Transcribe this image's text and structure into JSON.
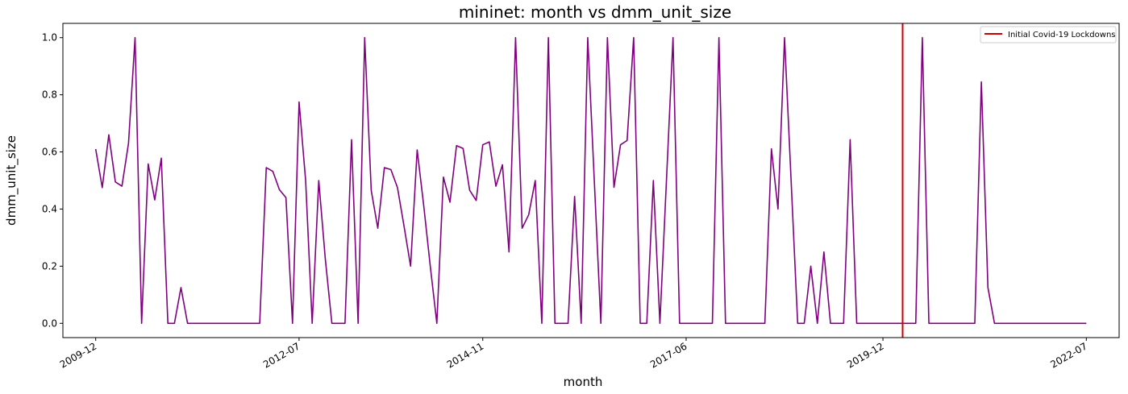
{
  "chart_data": {
    "type": "line",
    "title": "mininet: month vs dmm_unit_size",
    "xlabel": "month",
    "ylabel": "dmm_unit_size",
    "x_tick_labels": [
      "2009-12",
      "2012-07",
      "2014-11",
      "2017-06",
      "2019-12",
      "2022-07"
    ],
    "y_tick_labels": [
      "0.0",
      "0.2",
      "0.4",
      "0.6",
      "0.8",
      "1.0"
    ],
    "ylim": [
      -0.05,
      1.05
    ],
    "xlim": [
      "2009-07",
      "2022-12"
    ],
    "grid": false,
    "legend_position": "top-right",
    "series": [
      {
        "color": "#800080",
        "x": [
          "2009-12",
          "2010-01",
          "2010-02",
          "2010-03",
          "2010-04",
          "2010-05",
          "2010-06",
          "2010-07",
          "2010-08",
          "2010-09",
          "2010-10",
          "2010-11",
          "2010-12",
          "2011-01",
          "2011-02",
          "2011-03",
          "2011-04",
          "2011-05",
          "2011-06",
          "2011-07",
          "2011-08",
          "2011-09",
          "2011-10",
          "2011-11",
          "2011-12",
          "2012-01",
          "2012-02",
          "2012-03",
          "2012-04",
          "2012-05",
          "2012-06",
          "2012-07",
          "2012-08",
          "2012-09",
          "2012-10",
          "2012-11",
          "2012-12",
          "2013-01",
          "2013-02",
          "2013-03",
          "2013-04",
          "2013-05",
          "2013-06",
          "2013-07",
          "2013-08",
          "2013-09",
          "2013-10",
          "2013-11",
          "2013-12",
          "2014-01",
          "2014-02",
          "2014-03",
          "2014-04",
          "2014-05",
          "2014-06",
          "2014-07",
          "2014-08",
          "2014-09",
          "2014-10",
          "2014-11",
          "2014-12",
          "2015-01",
          "2015-02",
          "2015-03",
          "2015-04",
          "2015-05",
          "2015-06",
          "2015-07",
          "2015-08",
          "2015-09",
          "2015-10",
          "2015-11",
          "2015-12",
          "2016-01",
          "2016-02",
          "2016-03",
          "2016-04",
          "2016-05",
          "2016-06",
          "2016-07",
          "2016-08",
          "2016-09",
          "2016-10",
          "2016-11",
          "2016-12",
          "2017-01",
          "2017-02",
          "2017-03",
          "2017-04",
          "2017-05",
          "2017-06",
          "2017-07",
          "2017-08",
          "2017-09",
          "2017-10",
          "2017-11",
          "2017-12",
          "2018-01",
          "2018-02",
          "2018-03",
          "2018-04",
          "2018-05",
          "2018-06",
          "2018-07",
          "2018-08",
          "2018-09",
          "2018-10",
          "2018-11",
          "2018-12",
          "2019-01",
          "2019-02",
          "2019-03",
          "2019-04",
          "2019-05",
          "2019-06",
          "2019-07",
          "2019-08",
          "2019-09",
          "2019-10",
          "2019-11",
          "2019-12",
          "2020-01",
          "2020-02",
          "2020-03",
          "2020-04",
          "2020-05",
          "2020-06",
          "2020-07",
          "2020-08",
          "2020-09",
          "2020-10",
          "2020-11",
          "2020-12",
          "2021-01",
          "2021-02",
          "2021-03",
          "2021-04",
          "2021-05",
          "2021-06",
          "2021-07",
          "2021-08",
          "2021-09",
          "2021-10",
          "2021-11",
          "2021-12",
          "2022-01",
          "2022-02",
          "2022-03",
          "2022-04",
          "2022-05",
          "2022-06",
          "2022-07"
        ],
        "y": [
          0.61,
          0.475,
          0.66,
          0.495,
          0.48,
          0.63,
          1.0,
          0.0,
          0.558,
          0.432,
          0.578,
          0.0,
          0.0,
          0.125,
          0.0,
          0.0,
          0.0,
          0.0,
          0.0,
          0.0,
          0.0,
          0.0,
          0.0,
          0.0,
          0.0,
          0.0,
          0.545,
          0.532,
          0.468,
          0.44,
          0.0,
          0.775,
          0.5,
          0.0,
          0.5,
          0.225,
          0.0,
          0.0,
          0.0,
          0.643,
          0.0,
          1.0,
          0.465,
          0.333,
          0.545,
          0.538,
          0.475,
          0.34,
          0.2,
          0.607,
          0.412,
          0.2,
          0.0,
          0.512,
          0.424,
          0.622,
          0.612,
          0.466,
          0.43,
          0.625,
          0.635,
          0.48,
          0.555,
          0.25,
          1.0,
          0.333,
          0.38,
          0.5,
          0.0,
          1.0,
          0.0,
          0.0,
          0.0,
          0.444,
          0.0,
          1.0,
          0.5,
          0.0,
          1.0,
          0.476,
          0.625,
          0.64,
          1.0,
          0.0,
          0.0,
          0.5,
          0.0,
          0.5,
          1.0,
          0.0,
          0.0,
          0.0,
          0.0,
          0.0,
          0.0,
          1.0,
          0.0,
          0.0,
          0.0,
          0.0,
          0.0,
          0.0,
          0.0,
          0.611,
          0.4,
          1.0,
          0.5,
          0.0,
          0.0,
          0.2,
          0.0,
          0.25,
          0.0,
          0.0,
          0.0,
          0.643,
          0.0,
          0.0,
          0.0,
          0.0,
          0.0,
          0.0,
          0.0,
          0.0,
          0.0,
          0.0,
          1.0,
          0.0,
          0.0,
          0.0,
          0.0,
          0.0,
          0.0,
          0.0,
          0.0,
          0.845,
          0.125,
          0.0,
          0.0,
          0.0,
          0.0,
          0.0,
          0.0,
          0.0,
          0.0,
          0.0,
          0.0,
          0.0,
          0.0,
          0.0,
          0.0,
          0.0
        ]
      },
      {
        "name": "Initial Covid-19 Lockdowns",
        "color": "#cc0000",
        "vline_x": "2020-03"
      }
    ]
  }
}
